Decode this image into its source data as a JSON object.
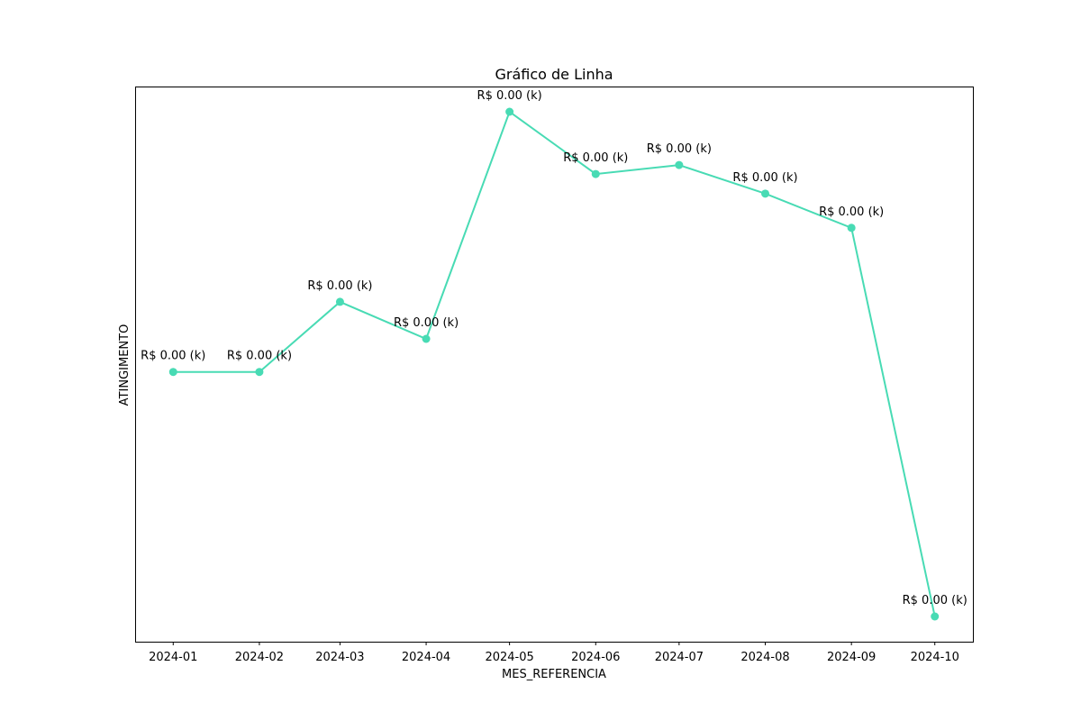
{
  "chart_data": {
    "type": "line",
    "title": "Gráfico de Linha",
    "xlabel": "MES_REFERENCIA",
    "ylabel": "ATINGIMENTO",
    "x": [
      "2024-01-01",
      "2024-02-01",
      "2024-03-01",
      "2024-04-01",
      "2024-05-01",
      "2024-06-01",
      "2024-07-01",
      "2024-08-01",
      "2024-09-01",
      "2024-10-01"
    ],
    "x_tick_labels": [
      "2024-01",
      "2024-02",
      "2024-03",
      "2024-04",
      "2024-05",
      "2024-06",
      "2024-07",
      "2024-08",
      "2024-09",
      "2024-10"
    ],
    "series": [
      {
        "values": [
          0.536,
          0.536,
          0.661,
          0.595,
          1.0,
          0.889,
          0.905,
          0.854,
          0.793,
          0.1
        ],
        "data_labels": [
          "R$ 0.00 (k)",
          "R$ 0.00 (k)",
          "R$ 0.00 (k)",
          "R$ 0.00 (k)",
          "R$ 0.00 (k)",
          "R$ 0.00 (k)",
          "R$ 0.00 (k)",
          "R$ 0.00 (k)",
          "R$ 0.00 (k)",
          "R$ 0.00 (k)"
        ],
        "color": "#48dbb4",
        "marker": "circle"
      }
    ],
    "ylim": [
      0.055,
      1.045
    ],
    "y_ticks_shown": false,
    "grid": false,
    "legend": false
  }
}
